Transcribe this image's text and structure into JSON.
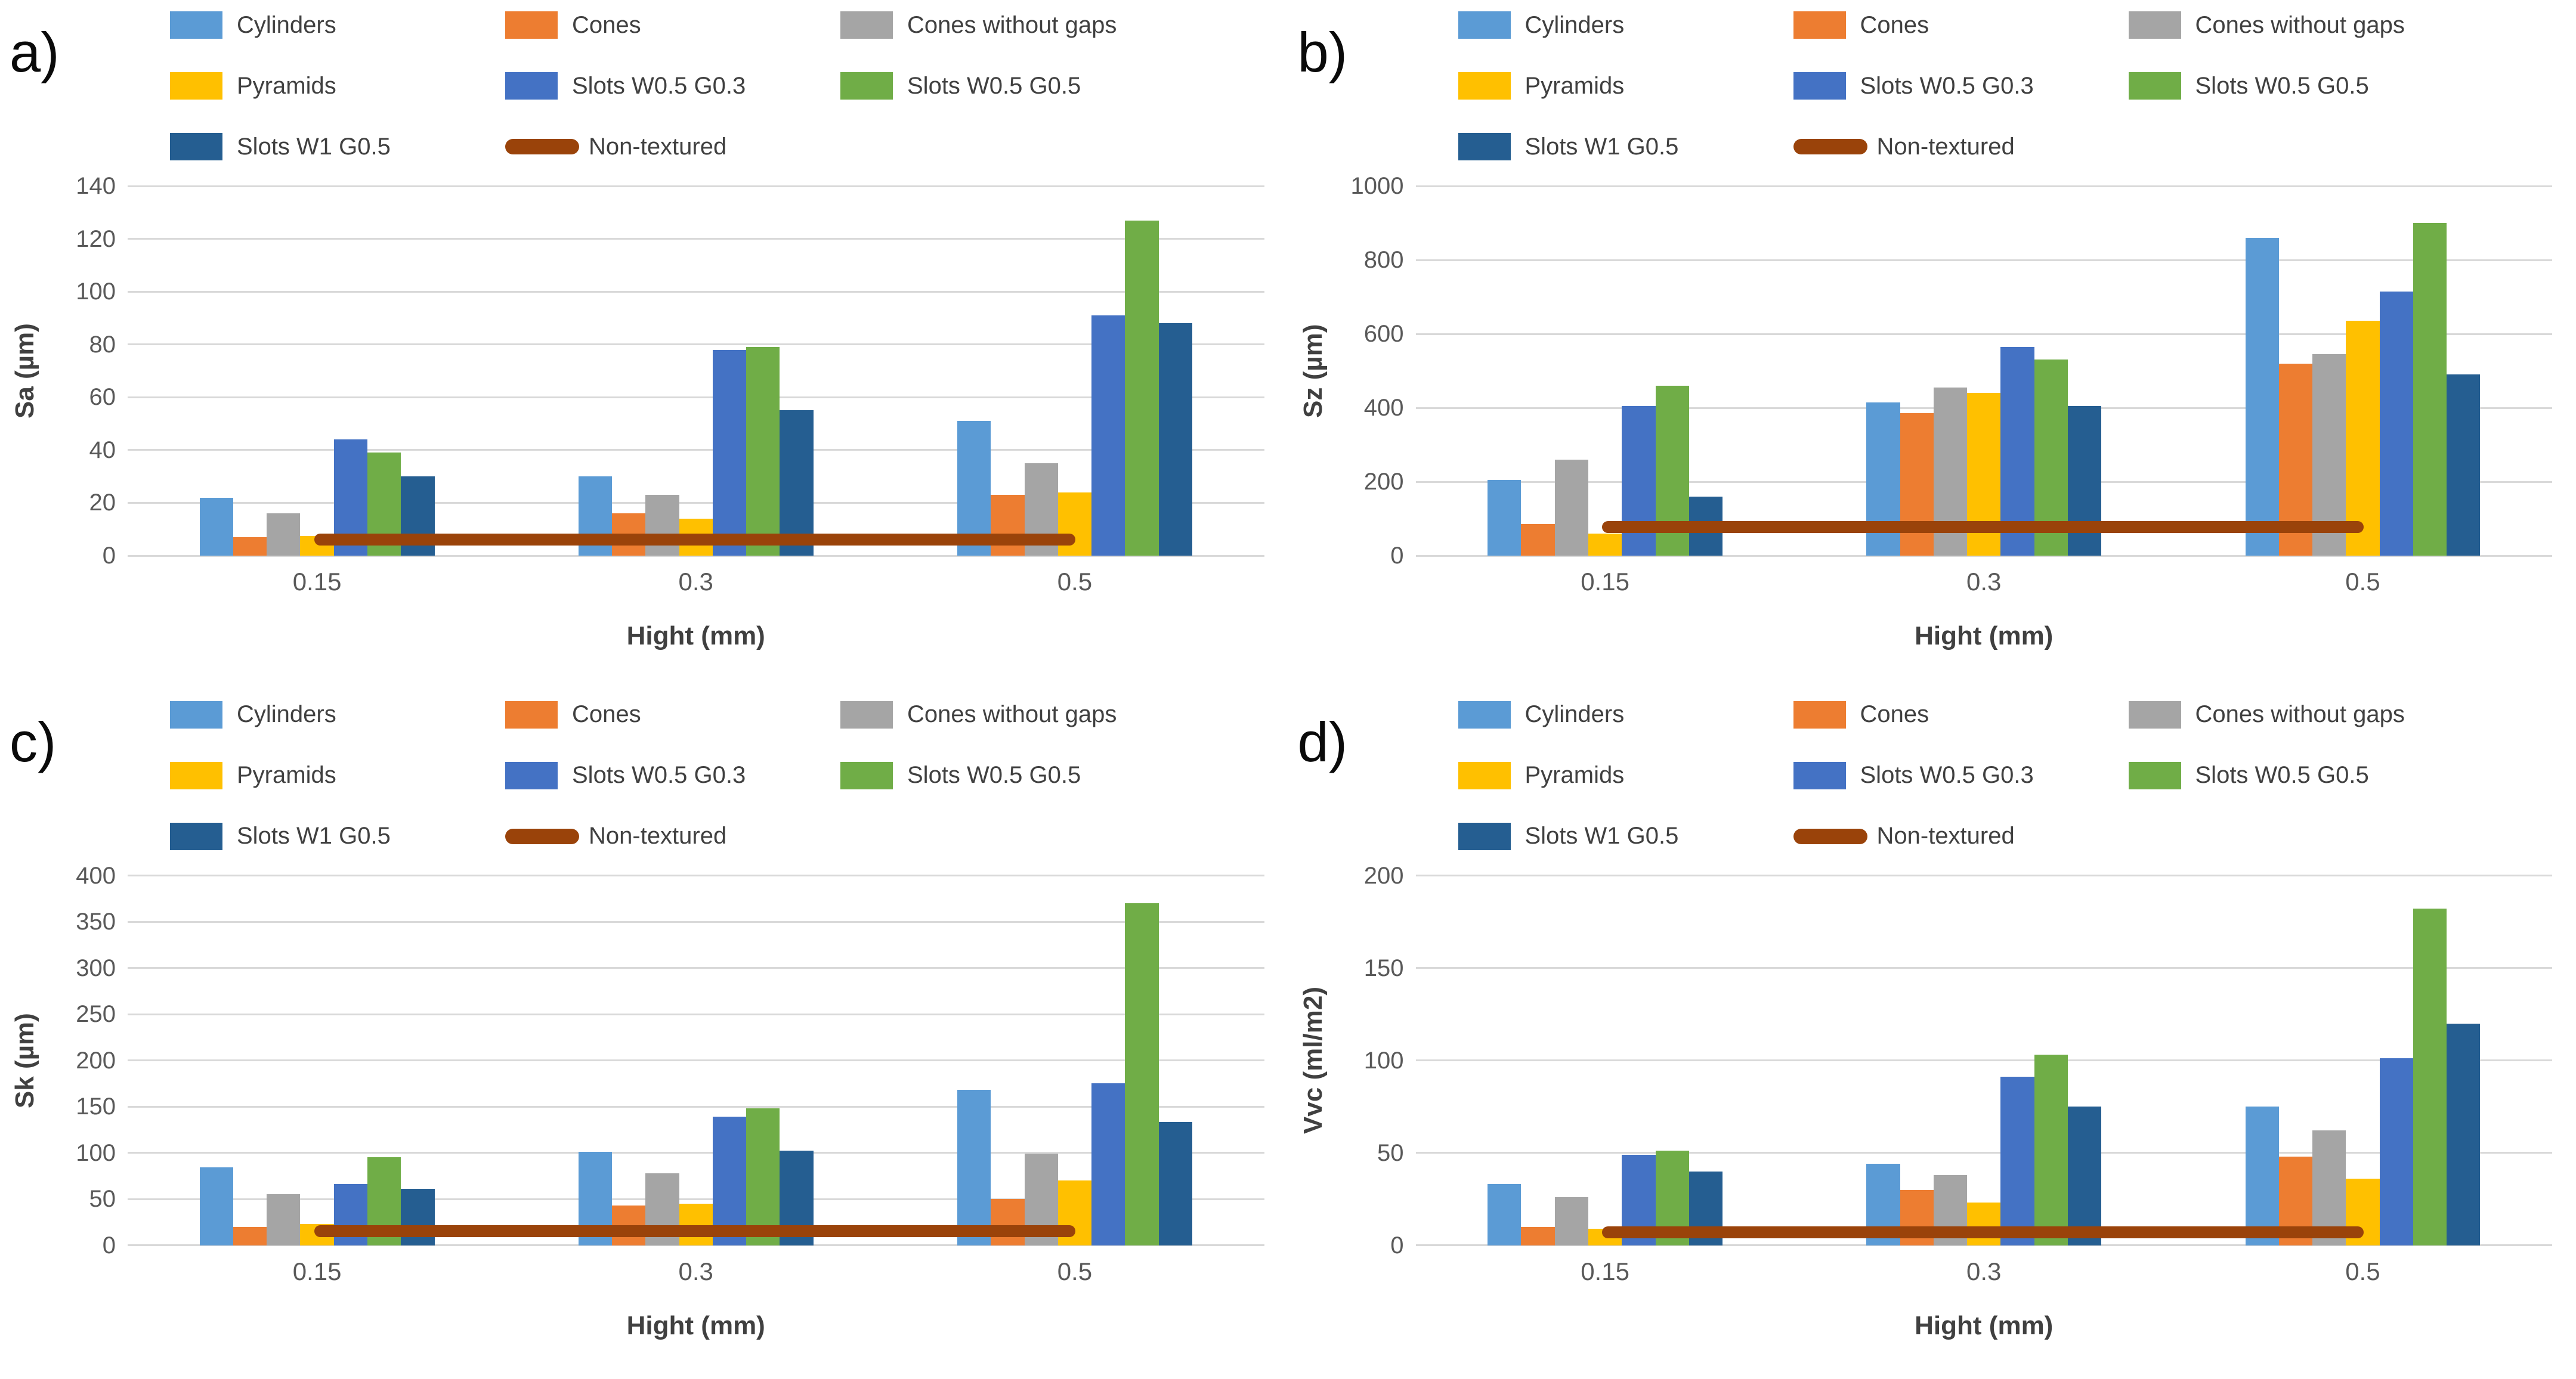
{
  "figure": {
    "x_axis_title": "Hight (mm)",
    "categories": [
      "0.15",
      "0.3",
      "0.5"
    ],
    "grid_color": "#D9D9D9",
    "tick_text_color": "#595959",
    "axis_title_color": "#404040",
    "legend_items": [
      {
        "name": "Cylinders",
        "color": "#5B9BD5",
        "type": "bar"
      },
      {
        "name": "Cones",
        "color": "#ED7D31",
        "type": "bar"
      },
      {
        "name": "Cones without gaps",
        "color": "#A5A5A5",
        "type": "bar"
      },
      {
        "name": "Pyramids",
        "color": "#FFC000",
        "type": "bar"
      },
      {
        "name": "Slots W0.5 G0.3",
        "color": "#4472C4",
        "type": "bar"
      },
      {
        "name": "Slots W0.5 G0.5",
        "color": "#70AD47",
        "type": "bar"
      },
      {
        "name": "Slots W1 G0.5",
        "color": "#255E91",
        "type": "bar"
      },
      {
        "name": "Non-textured",
        "color": "#9A430A",
        "type": "line"
      }
    ]
  },
  "chart_data": [
    {
      "panel_label": "a)",
      "type": "bar",
      "title": "",
      "ylabel": "Sa (µm)",
      "xlabel": "Hight (mm)",
      "categories": [
        "0.15",
        "0.3",
        "0.5"
      ],
      "ylim": [
        0,
        140
      ],
      "yticks": [
        0,
        20,
        40,
        60,
        80,
        100,
        120,
        140
      ],
      "grid": true,
      "legend_position": "top",
      "series": [
        {
          "name": "Cylinders",
          "values": [
            22,
            30,
            51
          ]
        },
        {
          "name": "Cones",
          "values": [
            7,
            16,
            23
          ]
        },
        {
          "name": "Cones without gaps",
          "values": [
            16,
            23,
            35
          ]
        },
        {
          "name": "Pyramids",
          "values": [
            7.5,
            14,
            24
          ]
        },
        {
          "name": "Slots W0.5 G0.3",
          "values": [
            44,
            78,
            91
          ]
        },
        {
          "name": "Slots W0.5 G0.5",
          "values": [
            39,
            79,
            127
          ]
        },
        {
          "name": "Slots W1 G0.5",
          "values": [
            30,
            55,
            88
          ]
        }
      ],
      "line_series": {
        "name": "Non-textured",
        "value": 6
      }
    },
    {
      "panel_label": "b)",
      "type": "bar",
      "title": "",
      "ylabel": "Sz (µm)",
      "xlabel": "Hight (mm)",
      "categories": [
        "0.15",
        "0.3",
        "0.5"
      ],
      "ylim": [
        0,
        1000
      ],
      "yticks": [
        0,
        200,
        400,
        600,
        800,
        1000
      ],
      "grid": true,
      "legend_position": "top",
      "series": [
        {
          "name": "Cylinders",
          "values": [
            205,
            415,
            860
          ]
        },
        {
          "name": "Cones",
          "values": [
            85,
            385,
            520
          ]
        },
        {
          "name": "Cones without gaps",
          "values": [
            260,
            455,
            545
          ]
        },
        {
          "name": "Pyramids",
          "values": [
            60,
            440,
            635
          ]
        },
        {
          "name": "Slots W0.5 G0.3",
          "values": [
            405,
            565,
            715
          ]
        },
        {
          "name": "Slots W0.5 G0.5",
          "values": [
            460,
            530,
            900
          ]
        },
        {
          "name": "Slots W1 G0.5",
          "values": [
            160,
            405,
            490
          ]
        }
      ],
      "line_series": {
        "name": "Non-textured",
        "value": 78
      }
    },
    {
      "panel_label": "c)",
      "type": "bar",
      "title": "",
      "ylabel": "Sk (µm)",
      "xlabel": "Hight (mm)",
      "categories": [
        "0.15",
        "0.3",
        "0.5"
      ],
      "ylim": [
        0,
        400
      ],
      "yticks": [
        0,
        50,
        100,
        150,
        200,
        250,
        300,
        350,
        400
      ],
      "grid": true,
      "legend_position": "top",
      "series": [
        {
          "name": "Cylinders",
          "values": [
            84,
            101,
            168
          ]
        },
        {
          "name": "Cones",
          "values": [
            20,
            43,
            50
          ]
        },
        {
          "name": "Cones without gaps",
          "values": [
            55,
            78,
            99
          ]
        },
        {
          "name": "Pyramids",
          "values": [
            23,
            45,
            70
          ]
        },
        {
          "name": "Slots W0.5 G0.3",
          "values": [
            66,
            139,
            175
          ]
        },
        {
          "name": "Slots W0.5 G0.5",
          "values": [
            95,
            148,
            370
          ]
        },
        {
          "name": "Slots W1 G0.5",
          "values": [
            61,
            102,
            133
          ]
        }
      ],
      "line_series": {
        "name": "Non-textured",
        "value": 15
      }
    },
    {
      "panel_label": "d)",
      "type": "bar",
      "title": "",
      "ylabel": "Vvc (ml/m2)",
      "xlabel": "Hight (mm)",
      "categories": [
        "0.15",
        "0.3",
        "0.5"
      ],
      "ylim": [
        0,
        200
      ],
      "yticks": [
        0,
        50,
        100,
        150,
        200
      ],
      "grid": true,
      "legend_position": "top",
      "series": [
        {
          "name": "Cylinders",
          "values": [
            33,
            44,
            75
          ]
        },
        {
          "name": "Cones",
          "values": [
            10,
            30,
            48
          ]
        },
        {
          "name": "Cones without gaps",
          "values": [
            26,
            38,
            62
          ]
        },
        {
          "name": "Pyramids",
          "values": [
            9,
            23,
            36
          ]
        },
        {
          "name": "Slots W0.5 G0.3",
          "values": [
            49,
            91,
            101
          ]
        },
        {
          "name": "Slots W0.5 G0.5",
          "values": [
            51,
            103,
            182
          ]
        },
        {
          "name": "Slots W1 G0.5",
          "values": [
            40,
            75,
            120
          ]
        }
      ],
      "line_series": {
        "name": "Non-textured",
        "value": 7
      }
    }
  ]
}
